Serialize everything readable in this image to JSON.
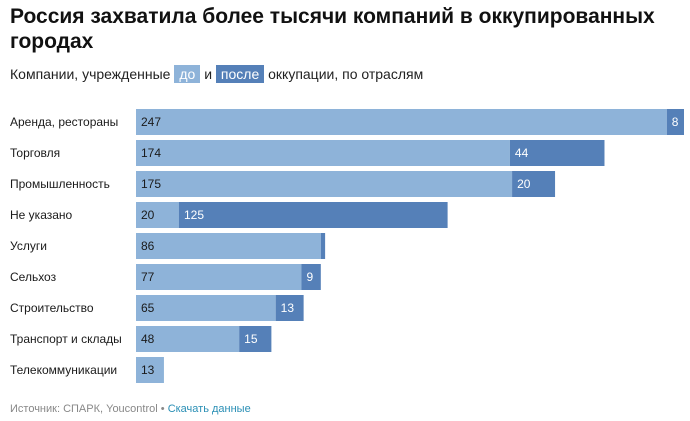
{
  "title": "Россия захватила более тысячи компаний в оккупированных городах",
  "subtitle": {
    "prefix": "Компании, учрежденные",
    "before_label": "до",
    "connector": "и",
    "after_label": "после",
    "suffix": "оккупации, по отраслям"
  },
  "colors": {
    "before": "#8eb3d9",
    "after": "#5580b8",
    "label_light": "#ffffff",
    "label_dark": "#1a1a1a"
  },
  "chart_data": {
    "type": "bar",
    "orientation": "horizontal",
    "stacked": true,
    "categories": [
      "Аренда, рестораны",
      "Торговля",
      "Промышленность",
      "Не указано",
      "Услуги",
      "Сельхоз",
      "Строительство",
      "Транспорт и склады",
      "Телекоммуникации"
    ],
    "series": [
      {
        "name": "до",
        "values": [
          247,
          174,
          175,
          20,
          86,
          77,
          65,
          48,
          13
        ]
      },
      {
        "name": "после",
        "values": [
          8,
          44,
          20,
          125,
          2,
          9,
          13,
          15,
          0
        ]
      }
    ],
    "data_labels": {
      "до": [
        "247",
        "174",
        "175",
        "20",
        "86",
        "77",
        "65",
        "48",
        "13"
      ],
      "после": [
        "8",
        "44",
        "20",
        "125",
        "",
        "9",
        "13",
        "15",
        ""
      ]
    },
    "xlim": [
      0,
      255
    ],
    "grid": false,
    "legend": "subtitle"
  },
  "footer": {
    "source": "Источник: СПАРК, Youcontrol",
    "separator": "•",
    "link": "Скачать данные"
  }
}
